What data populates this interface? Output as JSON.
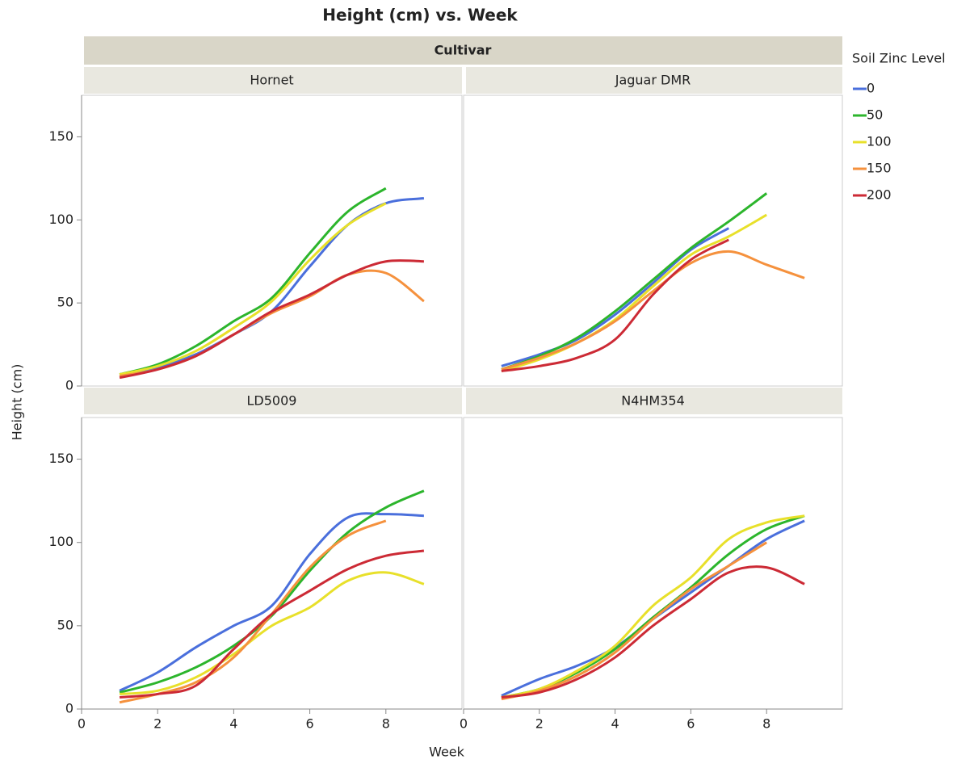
{
  "chart_data": {
    "type": "line",
    "title": "Height (cm) vs. Week",
    "facet_label": "Cultivar",
    "x_label": "Week",
    "y_label": "Height (cm)",
    "legend_title": "Soil Zinc Level",
    "x": [
      1,
      2,
      3,
      4,
      5,
      6,
      7,
      8,
      9
    ],
    "xlim": [
      0,
      10
    ],
    "xticks": [
      0,
      2,
      4,
      6,
      8
    ],
    "ylim": [
      0,
      175
    ],
    "yticks": [
      0,
      50,
      100,
      150
    ],
    "series": [
      {
        "name": "0",
        "color": "#4a6fdc"
      },
      {
        "name": "50",
        "color": "#2cb52c"
      },
      {
        "name": "100",
        "color": "#e8e02a"
      },
      {
        "name": "150",
        "color": "#f5913d"
      },
      {
        "name": "200",
        "color": "#cc2a35"
      }
    ],
    "panels": [
      {
        "name": "Hornet",
        "series": [
          {
            "values": [
              6,
              11,
              19,
              31,
              45,
              72,
              97,
              110,
              113
            ]
          },
          {
            "values": [
              7,
              13,
              24,
              39,
              53,
              80,
              105,
              119,
              null
            ]
          },
          {
            "values": [
              7,
              12,
              21,
              35,
              51,
              76,
              97,
              110,
              null
            ]
          },
          {
            "values": [
              6,
              10,
              18,
              31,
              44,
              54,
              67,
              68,
              51
            ]
          },
          {
            "values": [
              5,
              10,
              18,
              31,
              45,
              55,
              67,
              75,
              75
            ]
          }
        ]
      },
      {
        "name": "Jaguar DMR",
        "series": [
          {
            "values": [
              12,
              19,
              28,
              43,
              62,
              82,
              95,
              null,
              null
            ]
          },
          {
            "values": [
              10,
              18,
              29,
              45,
              64,
              83,
              99,
              116,
              null
            ]
          },
          {
            "values": [
              9,
              16,
              26,
              40,
              60,
              79,
              90,
              103,
              null
            ]
          },
          {
            "values": [
              10,
              17,
              26,
              39,
              57,
              74,
              81,
              73,
              65
            ]
          },
          {
            "values": [
              9,
              12,
              17,
              28,
              55,
              76,
              88,
              null,
              null
            ]
          }
        ]
      },
      {
        "name": "LD5009",
        "series": [
          {
            "values": [
              11,
              22,
              37,
              50,
              62,
              93,
              115,
              117,
              116
            ]
          },
          {
            "values": [
              10,
              16,
              25,
              38,
              56,
              83,
              106,
              121,
              131
            ]
          },
          {
            "values": [
              9,
              11,
              19,
              33,
              50,
              61,
              77,
              82,
              75
            ]
          },
          {
            "values": [
              4,
              9,
              16,
              31,
              57,
              85,
              104,
              113,
              null
            ]
          },
          {
            "values": [
              7,
              9,
              14,
              36,
              57,
              71,
              84,
              92,
              95
            ]
          }
        ]
      },
      {
        "name": "N4HM354",
        "series": [
          {
            "values": [
              8,
              18,
              26,
              37,
              54,
              70,
              86,
              102,
              113
            ]
          },
          {
            "values": [
              7,
              12,
              22,
              36,
              55,
              73,
              93,
              108,
              116
            ]
          },
          {
            "values": [
              7,
              12,
              23,
              38,
              62,
              79,
              102,
              112,
              116
            ]
          },
          {
            "values": [
              6,
              11,
              20,
              34,
              54,
              72,
              86,
              100,
              null
            ]
          },
          {
            "values": [
              7,
              10,
              18,
              31,
              50,
              66,
              82,
              85,
              75
            ]
          }
        ]
      }
    ]
  }
}
